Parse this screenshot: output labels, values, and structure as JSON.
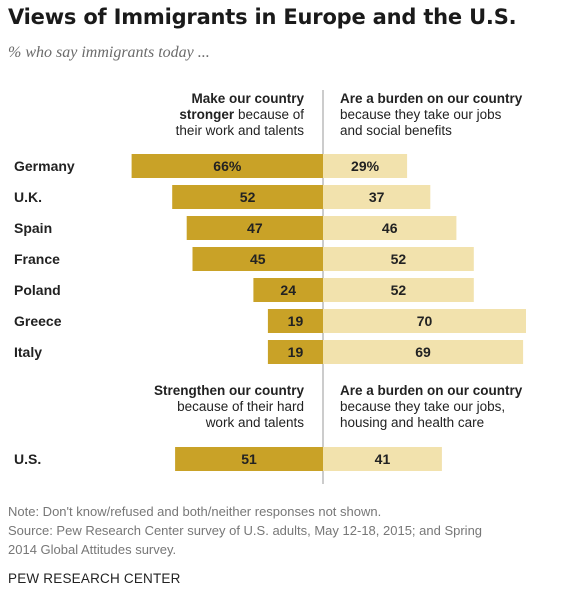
{
  "title": "Views of Immigrants in Europe and the U.S.",
  "subtitle": "% who say immigrants today ...",
  "europe_headers": {
    "left_bold_1": "Make our country",
    "left_bold_2": "stronger",
    "left_rest_2": " because of",
    "left_line_3": "their work and talents",
    "right_bold_1": "Are a burden on our country",
    "right_line_2": "because they take our jobs",
    "right_line_3": "and social benefits"
  },
  "us_headers": {
    "left_bold_1": "Strengthen our country",
    "left_line_2": "because of their hard",
    "left_line_3": "work and talents",
    "right_bold_1": "Are a burden on our country",
    "right_line_2": "because they take our jobs,",
    "right_line_3": "housing and health care"
  },
  "chart_data": {
    "type": "bar",
    "orientation": "horizontal-diverging",
    "title": "Views of Immigrants in Europe and the U.S.",
    "subtitle": "% who say immigrants today ...",
    "unit": "%",
    "categories": [
      "Germany",
      "U.K.",
      "Spain",
      "France",
      "Poland",
      "Greece",
      "Italy",
      "U.S."
    ],
    "series": [
      {
        "name": "Make our country stronger because of their work and talents",
        "values": [
          66,
          52,
          47,
          45,
          24,
          19,
          19,
          51
        ],
        "color": "#c9a227",
        "direction": "left"
      },
      {
        "name": "Are a burden on our country because they take our jobs and social benefits",
        "values": [
          29,
          37,
          46,
          52,
          52,
          70,
          69,
          41
        ],
        "color": "#f2e2ad",
        "direction": "right"
      }
    ],
    "value_labels": [
      [
        "66%",
        "52",
        "47",
        "45",
        "24",
        "19",
        "19",
        "51"
      ],
      [
        "29%",
        "37",
        "46",
        "52",
        "52",
        "70",
        "69",
        "41"
      ]
    ],
    "grid": false
  },
  "notes": {
    "line_1": "Note: Don't know/refused and both/neither responses not shown.",
    "line_2": "Source: Pew Research Center survey of U.S. adults, May 12-18, 2015; and Spring",
    "line_3": "2014 Global Attitudes survey."
  },
  "source_label": "PEW RESEARCH CENTER",
  "colors": {
    "positive": "#c9a227",
    "negative": "#f2e2ad",
    "divider": "#9a9a9a"
  }
}
